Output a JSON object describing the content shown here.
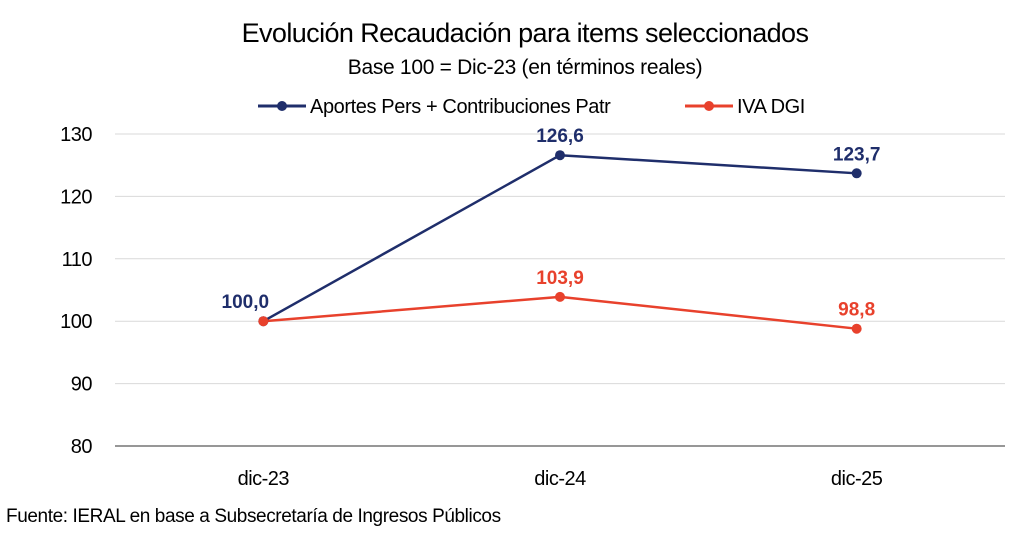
{
  "chart_data": {
    "type": "line",
    "title": "Evolución Recaudación para items seleccionados",
    "subtitle": "Base 100 =  Dic-23 (en términos reales)",
    "categories": [
      "dic-23",
      "dic-24",
      "dic-25"
    ],
    "series": [
      {
        "name": "Aportes Pers + Contribuciones Patr",
        "color": "#1f2e6b",
        "values": [
          100.0,
          126.6,
          123.7
        ],
        "labels": [
          "100,0",
          "126,6",
          "123,7"
        ]
      },
      {
        "name": "IVA DGI",
        "color": "#e8412c",
        "values": [
          100.0,
          103.9,
          98.8
        ],
        "labels": [
          "",
          "103,9",
          "98,8"
        ]
      }
    ],
    "ylim": [
      80,
      130
    ],
    "yticks": [
      80,
      90,
      100,
      110,
      120,
      130
    ],
    "grid": true,
    "legend": "top-center",
    "xlabel": "",
    "ylabel": ""
  },
  "source": "Fuente: IERAL en base a Subsecretaría de Ingresos Públicos",
  "colors": {
    "grid": "#d9d9d9",
    "axis": "#595959"
  }
}
